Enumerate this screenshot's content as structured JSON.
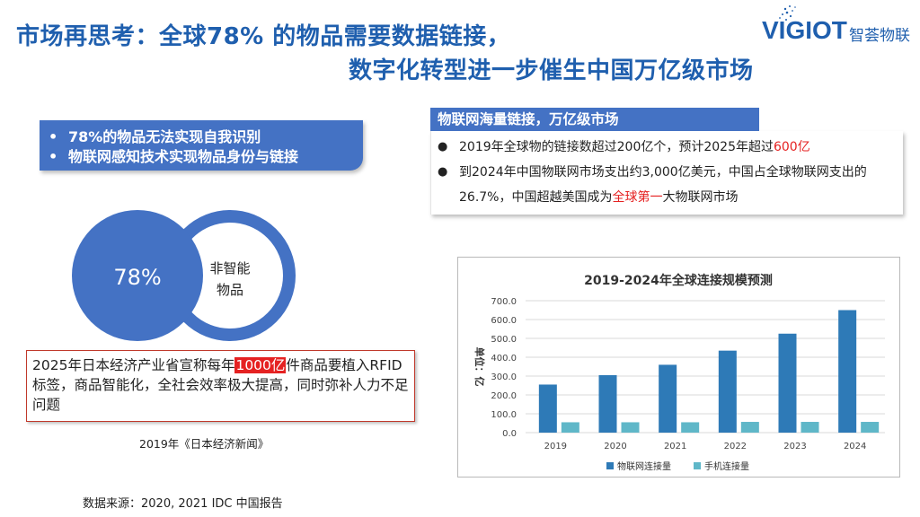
{
  "slide": {
    "title_line1": "市场再思考：全球78% 的物品需要数据链接，",
    "title_line2": "数字化转型进一步催生中国万亿级市场"
  },
  "logo": {
    "brand": "VIGIOT",
    "cn": "智荟物联",
    "color": "#1f5fae"
  },
  "bullets": [
    "78%的物品无法实现自我识别",
    "物联网感知技术实现物品身份与链接"
  ],
  "venn": {
    "big_label": "78%",
    "small_label_line1": "非智能",
    "small_label_line2": "物品",
    "fill_color": "#4472c4"
  },
  "note": {
    "before": "2025年日本经济产业省宣称每年",
    "highlight": "1000亿",
    "after": "件商品要植入RFID 标签，商品智能化，全社会效率极大提高，同时弥补人力不足问题"
  },
  "note_source": "2019年《日本经济新闻》",
  "data_source": "数据来源：2020,  2021 IDC 中国报告",
  "iot": {
    "header": "物联网海量链接，万亿级市场",
    "item1_before": "2019年全球物的链接数超过200亿个，预计2025年超过",
    "item1_highlight": "600亿",
    "item2_before": "到2024年中国物联网市场支出约3,000亿美元，中国占全球物联网支出的26.7%，中国超越美国成为",
    "item2_highlight": "全球第一",
    "item2_after": "大物联网市场"
  },
  "chart_data": {
    "type": "bar",
    "title": "2019-2024年全球连接规模预测",
    "ylabel": "单位：亿",
    "categories": [
      "2019",
      "2020",
      "2021",
      "2022",
      "2023",
      "2024"
    ],
    "ylim": [
      0,
      700
    ],
    "yticks": [
      "0.0",
      "100.0",
      "200.0",
      "300.0",
      "400.0",
      "500.0",
      "600.0",
      "700.0"
    ],
    "grid": true,
    "legend_position": "bottom",
    "series": [
      {
        "name": "物联网连接量",
        "color": "#2e7ab7",
        "values": [
          255,
          305,
          360,
          435,
          525,
          650
        ]
      },
      {
        "name": "手机连接量",
        "color": "#5fb7c8",
        "values": [
          55,
          55,
          55,
          57,
          57,
          57
        ]
      }
    ]
  }
}
